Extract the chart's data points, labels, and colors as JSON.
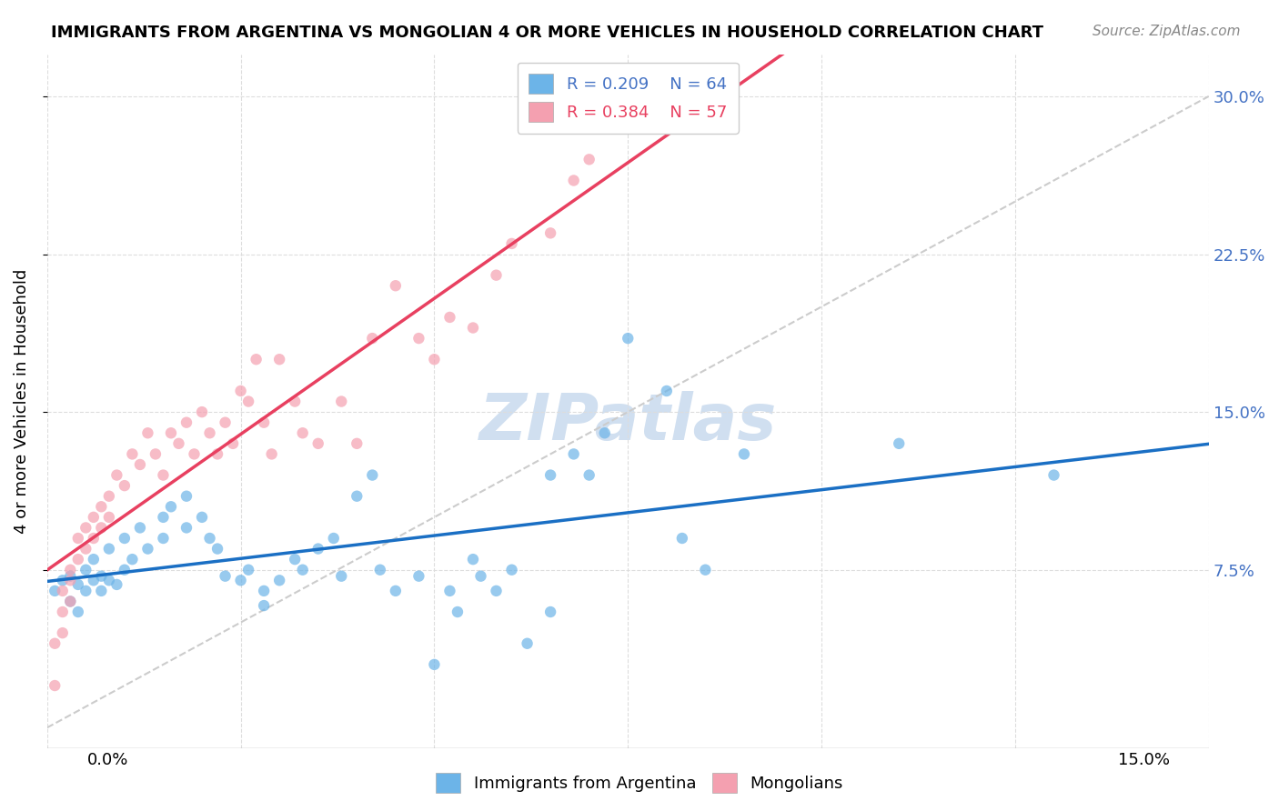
{
  "title": "IMMIGRANTS FROM ARGENTINA VS MONGOLIAN 4 OR MORE VEHICLES IN HOUSEHOLD CORRELATION CHART",
  "source": "Source: ZipAtlas.com",
  "ylabel": "4 or more Vehicles in Household",
  "xlim": [
    0.0,
    0.15
  ],
  "ylim": [
    -0.01,
    0.32
  ],
  "legend_r_blue": "R = 0.209",
  "legend_n_blue": "N = 64",
  "legend_r_pink": "R = 0.384",
  "legend_n_pink": "N = 57",
  "blue_color": "#6cb4e8",
  "pink_color": "#f4a0b0",
  "trend_blue_color": "#1a6fc4",
  "trend_pink_color": "#e84060",
  "diagonal_color": "#cccccc",
  "watermark": "ZIPatlas",
  "watermark_color": "#d0dff0",
  "argentina_x": [
    0.001,
    0.002,
    0.003,
    0.003,
    0.004,
    0.004,
    0.005,
    0.005,
    0.006,
    0.006,
    0.007,
    0.007,
    0.008,
    0.008,
    0.009,
    0.01,
    0.01,
    0.011,
    0.012,
    0.013,
    0.015,
    0.015,
    0.016,
    0.018,
    0.018,
    0.02,
    0.021,
    0.022,
    0.023,
    0.025,
    0.026,
    0.028,
    0.028,
    0.03,
    0.032,
    0.033,
    0.035,
    0.037,
    0.038,
    0.04,
    0.042,
    0.043,
    0.045,
    0.048,
    0.05,
    0.052,
    0.053,
    0.055,
    0.056,
    0.058,
    0.06,
    0.062,
    0.065,
    0.065,
    0.068,
    0.07,
    0.072,
    0.075,
    0.08,
    0.082,
    0.085,
    0.09,
    0.11,
    0.13
  ],
  "argentina_y": [
    0.065,
    0.07,
    0.072,
    0.06,
    0.068,
    0.055,
    0.075,
    0.065,
    0.08,
    0.07,
    0.072,
    0.065,
    0.085,
    0.07,
    0.068,
    0.09,
    0.075,
    0.08,
    0.095,
    0.085,
    0.1,
    0.09,
    0.105,
    0.095,
    0.11,
    0.1,
    0.09,
    0.085,
    0.072,
    0.07,
    0.075,
    0.065,
    0.058,
    0.07,
    0.08,
    0.075,
    0.085,
    0.09,
    0.072,
    0.11,
    0.12,
    0.075,
    0.065,
    0.072,
    0.03,
    0.065,
    0.055,
    0.08,
    0.072,
    0.065,
    0.075,
    0.04,
    0.055,
    0.12,
    0.13,
    0.12,
    0.14,
    0.185,
    0.16,
    0.09,
    0.075,
    0.13,
    0.135,
    0.12
  ],
  "mongolian_x": [
    0.001,
    0.001,
    0.002,
    0.002,
    0.002,
    0.003,
    0.003,
    0.003,
    0.004,
    0.004,
    0.005,
    0.005,
    0.006,
    0.006,
    0.007,
    0.007,
    0.008,
    0.008,
    0.009,
    0.01,
    0.011,
    0.012,
    0.013,
    0.014,
    0.015,
    0.016,
    0.017,
    0.018,
    0.019,
    0.02,
    0.021,
    0.022,
    0.023,
    0.024,
    0.025,
    0.026,
    0.027,
    0.028,
    0.029,
    0.03,
    0.032,
    0.033,
    0.035,
    0.038,
    0.04,
    0.042,
    0.045,
    0.048,
    0.05,
    0.052,
    0.055,
    0.058,
    0.06,
    0.065,
    0.068,
    0.07,
    0.075
  ],
  "mongolian_y": [
    0.04,
    0.02,
    0.055,
    0.045,
    0.065,
    0.07,
    0.06,
    0.075,
    0.08,
    0.09,
    0.085,
    0.095,
    0.1,
    0.09,
    0.105,
    0.095,
    0.11,
    0.1,
    0.12,
    0.115,
    0.13,
    0.125,
    0.14,
    0.13,
    0.12,
    0.14,
    0.135,
    0.145,
    0.13,
    0.15,
    0.14,
    0.13,
    0.145,
    0.135,
    0.16,
    0.155,
    0.175,
    0.145,
    0.13,
    0.175,
    0.155,
    0.14,
    0.135,
    0.155,
    0.135,
    0.185,
    0.21,
    0.185,
    0.175,
    0.195,
    0.19,
    0.215,
    0.23,
    0.235,
    0.26,
    0.27,
    0.29
  ]
}
